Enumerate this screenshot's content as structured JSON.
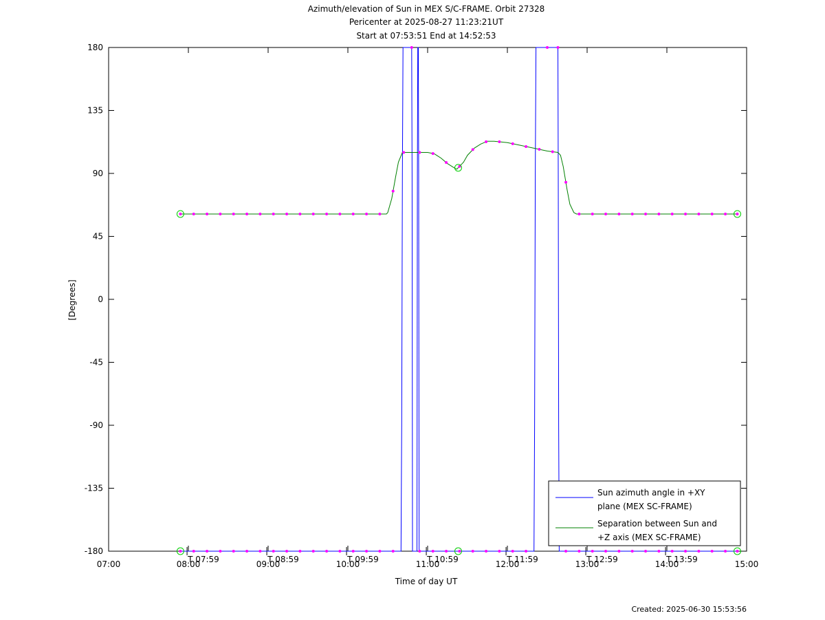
{
  "title_lines": [
    "Azimuth/elevation of Sun in MEX S/C-FRAME.  Orbit 27328",
    "Pericenter at 2025-08-27 11:23:21UT",
    "Start at 07:53:51 End at 14:52:53"
  ],
  "footer": "Created: 2025-06-30 15:53:56",
  "chart_data": {
    "type": "line",
    "xlabel": "Time of day UT",
    "ylabel": "[Degrees]",
    "xlim": [
      "07:00",
      "15:00"
    ],
    "ylim": [
      -180,
      180
    ],
    "x_ticks": [
      "07:00",
      "08:00",
      "09:00",
      "10:00",
      "11:00",
      "12:00",
      "13:00",
      "14:00",
      "15:00"
    ],
    "y_ticks": [
      180,
      135,
      90,
      45,
      0,
      -45,
      -90,
      -135,
      -180
    ],
    "orbit_ticks": [
      {
        "time": "07:59",
        "label": "T 07:59"
      },
      {
        "time": "08:59",
        "label": "T 08:59"
      },
      {
        "time": "09:59",
        "label": "T 09:59"
      },
      {
        "time": "10:59",
        "label": "T 10:59"
      },
      {
        "time": "11:59",
        "label": "T 11:59"
      },
      {
        "time": "12:59",
        "label": "T 12:59"
      },
      {
        "time": "13:59",
        "label": "T 13:59"
      }
    ],
    "legend_position": "bottom-right",
    "grid": false,
    "series": [
      {
        "name": "Sun azimuth angle in +XY plane (MEX SC-FRAME)",
        "legend_lines": [
          "Sun azimuth angle in +XY",
          "plane (MEX SC-FRAME)"
        ],
        "color": "#0000ff",
        "points": [
          [
            "07:54",
            -180
          ],
          [
            "10:40",
            -180
          ],
          [
            "10:40.5",
            -90
          ],
          [
            "10:41",
            90
          ],
          [
            "10:41.5",
            180
          ],
          [
            "10:48",
            180
          ],
          [
            "10:48.3",
            90
          ],
          [
            "10:48.6",
            -180
          ],
          [
            "10:52",
            -180
          ],
          [
            "10:52.3",
            90
          ],
          [
            "10:52.6",
            180
          ],
          [
            "10:53",
            180
          ],
          [
            "10:53.3",
            90
          ],
          [
            "10:53.6",
            -180
          ],
          [
            "12:20",
            -180
          ],
          [
            "12:20.5",
            -90
          ],
          [
            "12:21",
            90
          ],
          [
            "12:21.5",
            180
          ],
          [
            "12:38",
            180
          ],
          [
            "12:38.3",
            90
          ],
          [
            "12:38.6",
            -90
          ],
          [
            "12:39",
            -180
          ],
          [
            "14:53",
            -180
          ]
        ]
      },
      {
        "name": "Separation between Sun and +Z axis (MEX SC-FRAME)",
        "legend_lines": [
          "Separation between Sun and",
          "+Z axis (MEX SC-FRAME)"
        ],
        "color": "#008000",
        "points": [
          [
            "07:54",
            61
          ],
          [
            "10:29",
            61
          ],
          [
            "10:30",
            62
          ],
          [
            "10:33",
            72
          ],
          [
            "10:36",
            88
          ],
          [
            "10:38",
            98
          ],
          [
            "10:41",
            105
          ],
          [
            "10:50",
            105
          ],
          [
            "11:00",
            105
          ],
          [
            "11:05",
            104
          ],
          [
            "11:10",
            101
          ],
          [
            "11:15",
            97
          ],
          [
            "11:20",
            94
          ],
          [
            "11:22",
            93
          ],
          [
            "11:24",
            95
          ],
          [
            "11:27",
            98
          ],
          [
            "11:30",
            103
          ],
          [
            "11:35",
            108
          ],
          [
            "11:40",
            111
          ],
          [
            "11:45",
            113
          ],
          [
            "11:50",
            113
          ],
          [
            "12:00",
            112
          ],
          [
            "12:10",
            110
          ],
          [
            "12:20",
            108
          ],
          [
            "12:30",
            106
          ],
          [
            "12:38",
            105
          ],
          [
            "12:40",
            103
          ],
          [
            "12:42",
            95
          ],
          [
            "12:45",
            78
          ],
          [
            "12:47",
            68
          ],
          [
            "12:50",
            62
          ],
          [
            "12:52",
            61
          ],
          [
            "14:53",
            61
          ]
        ]
      }
    ],
    "magenta_markers": [
      {
        "series": 1,
        "times": [
          "07:54",
          "08:04",
          "08:14",
          "08:24",
          "08:34",
          "08:44",
          "08:54",
          "09:04",
          "09:14",
          "09:24",
          "09:34",
          "09:44",
          "09:54",
          "10:04",
          "10:14",
          "10:24",
          "10:34",
          "10:42",
          "10:54",
          "11:04",
          "11:14",
          "11:24",
          "11:34",
          "11:44",
          "11:54",
          "12:04",
          "12:14",
          "12:24",
          "12:34",
          "12:44",
          "12:54",
          "13:04",
          "13:14",
          "13:24",
          "13:34",
          "13:44",
          "13:54",
          "14:04",
          "14:14",
          "14:24",
          "14:34",
          "14:44",
          "14:53"
        ]
      },
      {
        "series": 0,
        "times": [
          "07:54",
          "08:04",
          "08:14",
          "08:24",
          "08:34",
          "08:44",
          "08:54",
          "09:04",
          "09:14",
          "09:24",
          "09:34",
          "09:44",
          "09:54",
          "10:04",
          "10:14",
          "10:24",
          "10:34",
          "10:54",
          "11:04",
          "11:14",
          "11:24",
          "11:34",
          "11:44",
          "11:54",
          "12:04",
          "12:14",
          "12:44",
          "12:54",
          "13:04",
          "13:14",
          "13:24",
          "13:34",
          "13:44",
          "13:54",
          "14:04",
          "14:14",
          "14:24",
          "14:34",
          "14:44",
          "14:53"
        ]
      },
      {
        "series": 0,
        "top_times": [
          "10:48",
          "12:30",
          "12:38"
        ]
      }
    ],
    "green_circles": [
      {
        "series": 1,
        "times": [
          "07:54",
          "11:23",
          "14:53"
        ]
      },
      {
        "series": 0,
        "times": [
          "07:54",
          "11:23",
          "14:53"
        ]
      }
    ]
  }
}
